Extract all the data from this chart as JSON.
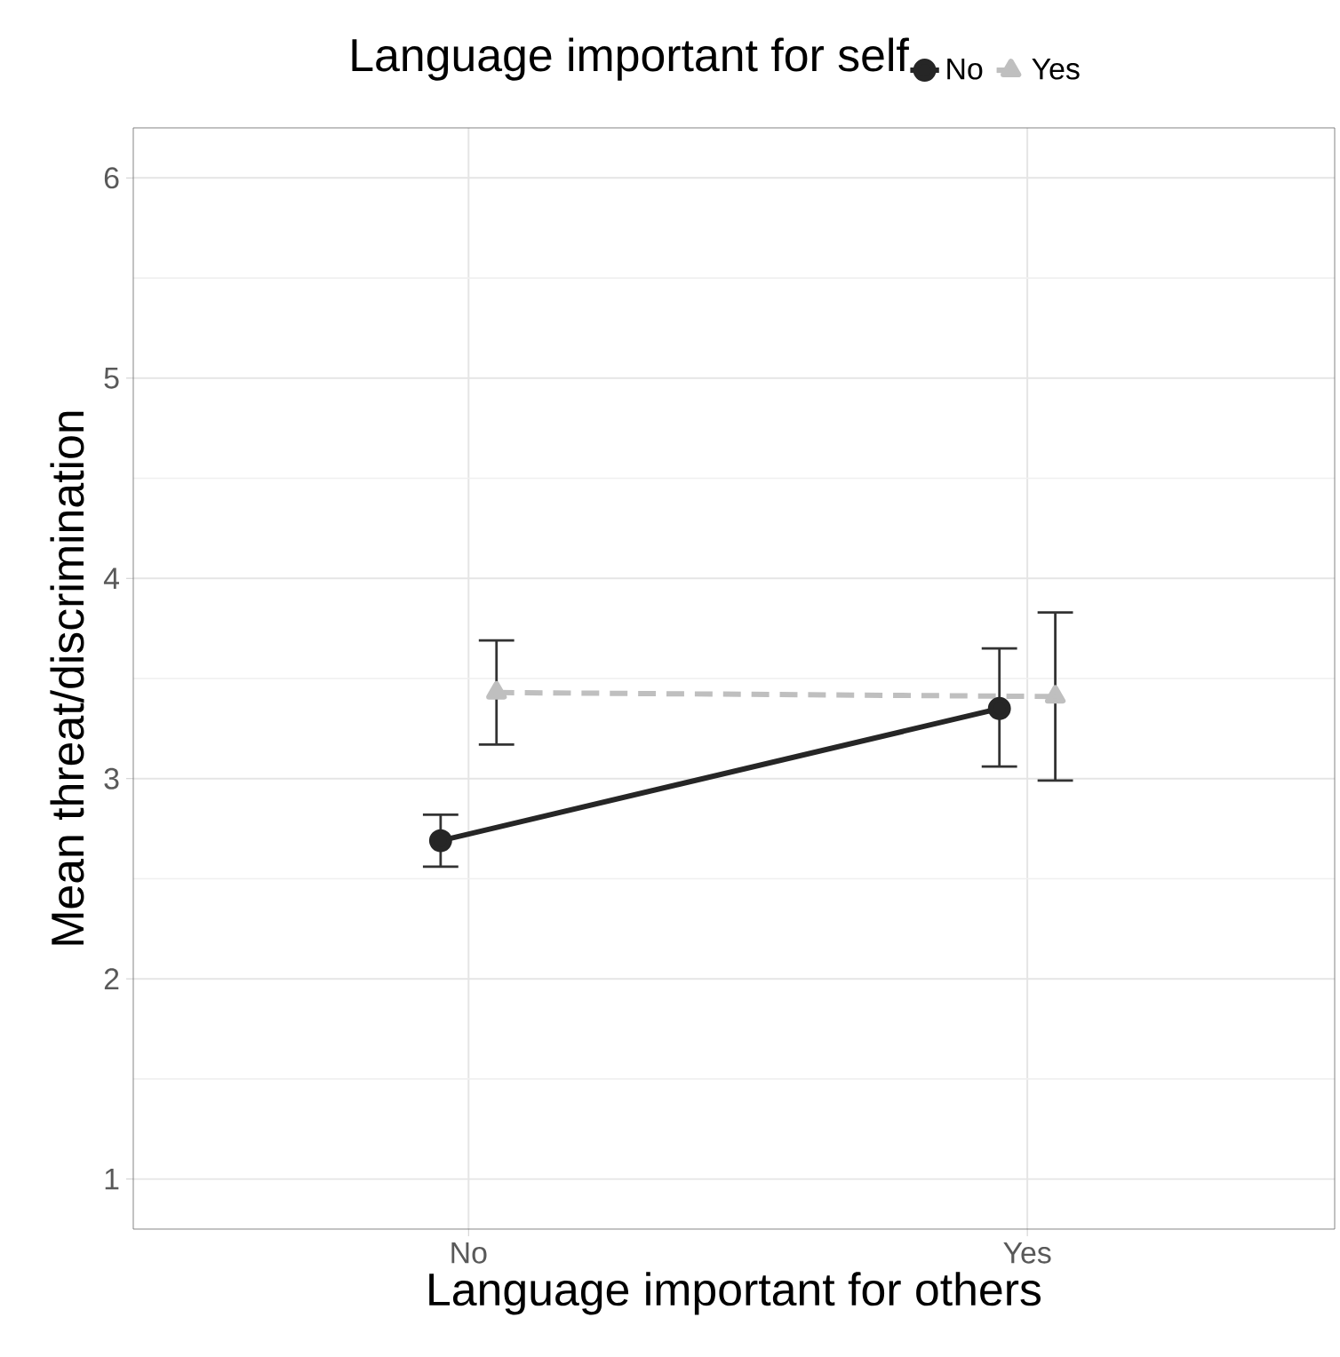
{
  "chart_data": {
    "type": "line",
    "legend_title": "Language important for self",
    "xlabel": "Language important for others",
    "ylabel": "Mean threat/discrimination",
    "categories": [
      "No",
      "Yes"
    ],
    "series": [
      {
        "name": "No",
        "color": "#262626",
        "marker": "circle",
        "line_style": "solid",
        "values": [
          2.69,
          3.35
        ],
        "errors": [
          [
            2.56,
            2.82
          ],
          [
            3.06,
            3.65
          ]
        ]
      },
      {
        "name": "Yes",
        "color": "#bfbfbf",
        "marker": "triangle",
        "line_style": "dashed",
        "values": [
          3.43,
          3.41
        ],
        "errors": [
          [
            3.17,
            3.69
          ],
          [
            2.99,
            3.83
          ]
        ]
      }
    ],
    "ylim": [
      0.75,
      6.25
    ],
    "yticks": [
      1,
      2,
      3,
      4,
      5,
      6
    ],
    "grid": true,
    "legend": "top"
  }
}
